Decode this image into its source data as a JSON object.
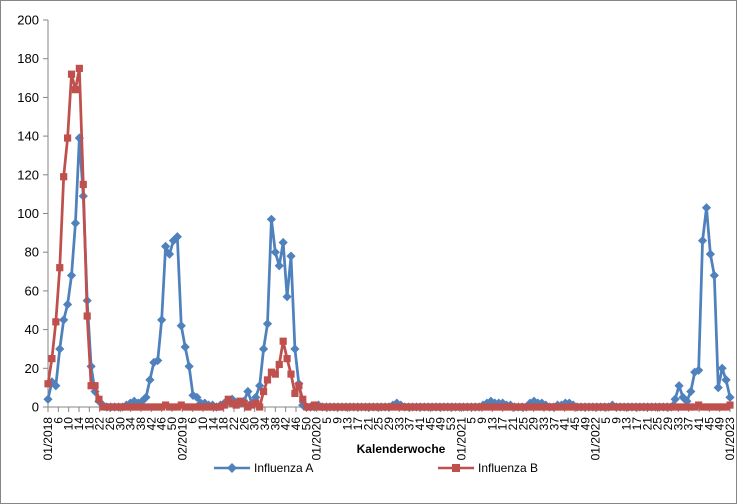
{
  "chart_data": {
    "type": "line",
    "title": "",
    "xlabel": "Kalenderwoche",
    "ylabel": "",
    "ylim": [
      0,
      200
    ],
    "yticks": [
      0,
      20,
      40,
      60,
      80,
      100,
      120,
      140,
      160,
      180,
      200
    ],
    "grid": false,
    "legend_position": "bottom",
    "x_tick_labels": [
      "01/2018",
      "6",
      "10",
      "14",
      "18",
      "22",
      "26",
      "30",
      "34",
      "38",
      "42",
      "46",
      "50",
      "02/2019",
      "6",
      "10",
      "14",
      "18",
      "22",
      "26",
      "30",
      "34",
      "38",
      "42",
      "46",
      "50",
      "01/2020",
      "5",
      "9",
      "13",
      "17",
      "21",
      "25",
      "29",
      "33",
      "37",
      "41",
      "45",
      "49",
      "53",
      "01/2021",
      "5",
      "9",
      "13",
      "17",
      "21",
      "25",
      "29",
      "33",
      "37",
      "41",
      "45",
      "49",
      "01/2022",
      "5",
      "9",
      "13",
      "17",
      "21",
      "25",
      "29",
      "33",
      "37",
      "41",
      "45",
      "49",
      "01/2023"
    ],
    "series": [
      {
        "name": "Influenza A",
        "color": "#4F81BD",
        "marker": "diamond",
        "values": [
          4,
          13,
          11,
          30,
          45,
          53,
          68,
          95,
          139,
          109,
          55,
          21,
          8,
          3,
          1,
          0,
          0,
          0,
          0,
          0,
          1,
          2,
          3,
          2,
          3,
          5,
          14,
          23,
          24,
          45,
          83,
          79,
          86,
          88,
          42,
          31,
          21,
          6,
          5,
          2,
          2,
          1,
          1,
          0,
          1,
          2,
          3,
          4,
          2,
          2,
          3,
          8,
          2,
          5,
          11,
          30,
          43,
          97,
          80,
          73,
          85,
          57,
          78,
          30,
          12,
          1,
          0,
          0,
          0,
          1,
          0,
          0,
          0,
          0,
          0,
          0,
          0,
          0,
          0,
          0,
          0,
          0,
          0,
          0,
          0,
          0,
          0,
          0,
          1,
          2,
          1,
          0,
          0,
          0,
          0,
          0,
          0,
          0,
          0,
          0,
          0,
          0,
          0,
          0,
          0,
          0,
          0,
          0,
          0,
          0,
          0,
          1,
          2,
          3,
          2,
          2,
          2,
          1,
          1,
          0,
          0,
          0,
          0,
          2,
          3,
          2,
          2,
          1,
          0,
          0,
          1,
          1,
          2,
          2,
          1,
          0,
          0,
          0,
          0,
          0,
          0,
          0,
          0,
          0,
          1,
          0,
          0,
          0,
          0,
          0,
          0,
          0,
          0,
          0,
          0,
          0,
          0,
          0,
          0,
          0,
          4,
          11,
          5,
          3,
          8,
          18,
          19,
          86,
          103,
          79,
          68,
          10,
          20,
          14,
          5
        ]
      },
      {
        "name": "Influenza B",
        "color": "#C0504D",
        "marker": "square",
        "values": [
          12,
          25,
          44,
          72,
          119,
          139,
          172,
          164,
          175,
          115,
          47,
          11,
          11,
          4,
          0,
          0,
          0,
          0,
          0,
          0,
          0,
          0,
          0,
          0,
          0,
          0,
          0,
          0,
          0,
          0,
          1,
          0,
          0,
          0,
          1,
          0,
          0,
          0,
          0,
          0,
          0,
          0,
          0,
          0,
          0,
          1,
          4,
          2,
          1,
          3,
          2,
          0,
          1,
          2,
          0,
          8,
          14,
          18,
          17,
          22,
          34,
          25,
          17,
          7,
          11,
          4,
          0,
          0,
          1,
          0,
          0,
          0,
          0,
          0,
          0,
          0,
          0,
          0,
          0,
          0,
          0,
          0,
          0,
          0,
          0,
          0,
          0,
          0,
          0,
          0,
          0,
          0,
          0,
          0,
          0,
          0,
          0,
          0,
          0,
          0,
          0,
          0,
          0,
          0,
          0,
          0,
          0,
          0,
          0,
          0,
          0,
          0,
          0,
          0,
          0,
          0,
          0,
          0,
          0,
          0,
          0,
          0,
          0,
          0,
          0,
          0,
          0,
          0,
          0,
          0,
          0,
          0,
          0,
          0,
          0,
          0,
          0,
          0,
          0,
          0,
          0,
          0,
          0,
          0,
          0,
          0,
          0,
          0,
          0,
          0,
          0,
          0,
          0,
          0,
          0,
          0,
          0,
          0,
          0,
          0,
          0,
          0,
          0,
          0,
          0,
          0,
          1,
          0,
          0,
          0,
          0,
          0,
          0,
          0,
          1
        ]
      }
    ]
  },
  "legend": {
    "items": [
      "Influenza A",
      "Influenza B"
    ]
  },
  "axis": {
    "x_title": "Kalenderwoche",
    "axis_color": "#868686",
    "tick_color": "#868686"
  }
}
